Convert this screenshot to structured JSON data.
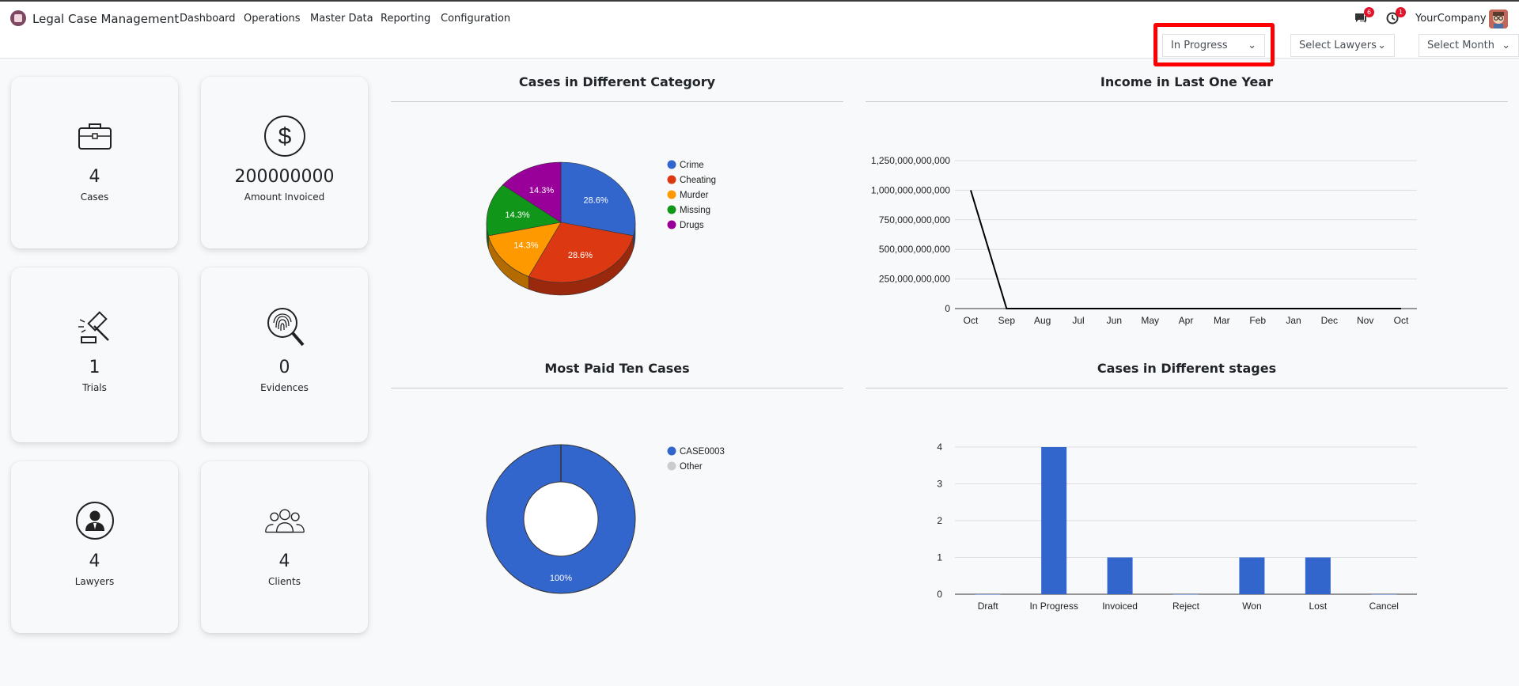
{
  "navbar": {
    "app_title": "Legal Case Management",
    "menu": [
      "Dashboard",
      "Operations",
      "Master Data",
      "Reporting",
      "Configuration"
    ],
    "chat_count": "6",
    "activity_count": "1",
    "company": "YourCompany"
  },
  "filters": {
    "stage": "In Progress",
    "lawyers": "Select Lawyers",
    "month": "Select Month"
  },
  "cards": [
    {
      "value": "4",
      "label": "Cases",
      "icon": "briefcase-icon"
    },
    {
      "value": "200000000",
      "label": "Amount Invoiced",
      "icon": "dollar-icon"
    },
    {
      "value": "1",
      "label": "Trials",
      "icon": "gavel-icon"
    },
    {
      "value": "0",
      "label": "Evidences",
      "icon": "fingerprint-search-icon"
    },
    {
      "value": "4",
      "label": "Lawyers",
      "icon": "lawyer-icon"
    },
    {
      "value": "4",
      "label": "Clients",
      "icon": "clients-icon"
    }
  ],
  "panels": {
    "category_title": "Cases in Different Category",
    "income_title": "Income in Last One Year",
    "paid_title": "Most Paid Ten Cases",
    "stages_title": "Cases in Different stages"
  },
  "chart_data": [
    {
      "type": "pie",
      "title": "Cases in Different Category",
      "labels": [
        "Crime",
        "Cheating",
        "Murder",
        "Missing",
        "Drugs"
      ],
      "values": [
        28.6,
        28.6,
        14.3,
        14.3,
        14.3
      ],
      "slice_labels": [
        "28.6%",
        "28.6%",
        "14.3%",
        "14.3%",
        "14.3%"
      ],
      "colors": [
        "#3366cc",
        "#dc3912",
        "#ff9900",
        "#109618",
        "#990099"
      ],
      "legend": "right"
    },
    {
      "type": "line",
      "title": "Income in Last One Year",
      "x": [
        "Oct",
        "Sep",
        "Aug",
        "Jul",
        "Jun",
        "May",
        "Apr",
        "Mar",
        "Feb",
        "Jan",
        "Dec",
        "Nov",
        "Oct"
      ],
      "values": [
        1000000000000,
        0,
        0,
        0,
        0,
        0,
        0,
        0,
        0,
        0,
        0,
        0,
        0
      ],
      "yticks": [
        "0",
        "250,000,000,000",
        "500,000,000,000",
        "750,000,000,000",
        "1,000,000,000,000",
        "1,250,000,000,000"
      ],
      "ylim": [
        0,
        1250000000000
      ],
      "color": "#000000",
      "grid": true
    },
    {
      "type": "pie",
      "title": "Most Paid Ten Cases",
      "labels": [
        "CASE0003",
        "Other"
      ],
      "values": [
        100,
        0
      ],
      "slice_labels": [
        "100%"
      ],
      "colors": [
        "#3366cc",
        "#cccccc"
      ],
      "donut": true,
      "legend": "right"
    },
    {
      "type": "bar",
      "title": "Cases in Different stages",
      "categories": [
        "Draft",
        "In Progress",
        "Invoiced",
        "Reject",
        "Won",
        "Lost",
        "Cancel"
      ],
      "values": [
        0,
        4,
        1,
        0,
        1,
        1,
        0
      ],
      "yticks": [
        "0",
        "1",
        "2",
        "3",
        "4"
      ],
      "ylim": [
        0,
        4
      ],
      "color": "#3366cc",
      "grid": true
    }
  ]
}
